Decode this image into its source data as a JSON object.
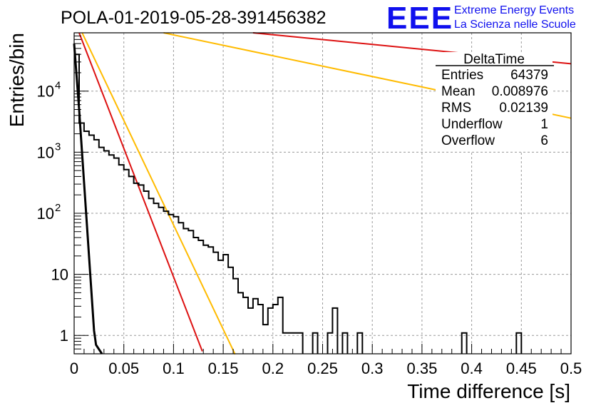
{
  "title": "POLA-01-2019-05-28-391456382",
  "logo": {
    "mark": "EEE",
    "line1": "Extreme Energy Events",
    "line2": "La Scienza nelle Scuole",
    "color": "#1010ee"
  },
  "stats": {
    "name": "DeltaTime",
    "rows": [
      {
        "label": "Entries",
        "value": "64379"
      },
      {
        "label": "Mean",
        "value": "0.008976"
      },
      {
        "label": "RMS",
        "value": "0.02139"
      },
      {
        "label": "Underflow",
        "value": "1"
      },
      {
        "label": "Overflow",
        "value": "6"
      }
    ]
  },
  "chart_data": {
    "type": "histogram",
    "xlabel": "Time difference [s]",
    "ylabel": "Entries/bin",
    "xlim": [
      0,
      0.5
    ],
    "ylim": [
      0.5,
      90000
    ],
    "y_scale": "log",
    "grid": true,
    "x_ticks": [
      {
        "value": 0,
        "label": "0"
      },
      {
        "value": 0.05,
        "label": "0.05"
      },
      {
        "value": 0.1,
        "label": "0.1"
      },
      {
        "value": 0.15,
        "label": "0.15"
      },
      {
        "value": 0.2,
        "label": "0.2"
      },
      {
        "value": 0.25,
        "label": "0.25"
      },
      {
        "value": 0.3,
        "label": "0.3"
      },
      {
        "value": 0.35,
        "label": "0.35"
      },
      {
        "value": 0.4,
        "label": "0.4"
      },
      {
        "value": 0.45,
        "label": "0.45"
      },
      {
        "value": 0.5,
        "label": "0.5"
      }
    ],
    "y_ticks": [
      {
        "value": 1,
        "label": "1"
      },
      {
        "value": 10,
        "label": "10"
      },
      {
        "value": 100,
        "label": "10",
        "exp": "2"
      },
      {
        "value": 1000,
        "label": "10",
        "exp": "3"
      },
      {
        "value": 10000,
        "label": "10",
        "exp": "4"
      }
    ],
    "bin_width": 0.005,
    "histogram": [
      40000,
      3000,
      2200,
      1900,
      1600,
      1200,
      1050,
      900,
      800,
      620,
      520,
      400,
      310,
      290,
      230,
      175,
      145,
      125,
      108,
      95,
      88,
      70,
      56,
      52,
      40,
      36,
      30,
      28,
      23,
      17,
      21,
      13,
      8.5,
      5,
      4.2,
      2.8,
      4,
      3.2,
      1.5,
      2.8,
      3.2,
      4.2,
      1.1,
      1.1,
      1.1,
      1.1,
      0.3,
      0.3,
      1.1,
      0.3,
      0.3,
      1.1,
      2.8,
      0.3,
      1.1,
      0.3,
      0.3,
      1.1,
      0.3,
      0.3,
      0.3,
      0.3,
      0.3,
      0.3,
      0.3,
      0.3,
      0.3,
      0.3,
      0.3,
      0.3,
      0.3,
      0.3,
      0.3,
      0.3,
      0.3,
      0.3,
      0.3,
      0.3,
      1.1,
      0.3,
      0.3,
      0.3,
      0.3,
      0.3,
      0.3,
      0.3,
      0.3,
      0.3,
      0.3,
      1.1,
      0.3,
      0.3,
      0.3,
      0.3,
      0.3,
      0.3,
      0.3,
      0.3,
      0.3,
      0.3
    ],
    "fit_lines": [
      {
        "color": "#000000",
        "points": [
          [
            0.0,
            60000
          ],
          [
            0.005,
            5000
          ],
          [
            0.02,
            1.2
          ],
          [
            0.022,
            0.7
          ],
          [
            0.028,
            0.5
          ]
        ]
      },
      {
        "color": "#dd1111",
        "points": [
          [
            0.005,
            90000
          ],
          [
            0.129,
            0.55
          ]
        ]
      },
      {
        "color": "#ffbb00",
        "points": [
          [
            0.008,
            90000
          ],
          [
            0.162,
            0.48
          ]
        ]
      },
      {
        "color": "#ffbb00",
        "points": [
          [
            0.09,
            90000
          ],
          [
            0.5,
            3600
          ]
        ]
      },
      {
        "color": "#dd1111",
        "points": [
          [
            0.18,
            90000
          ],
          [
            0.5,
            28000
          ]
        ]
      }
    ]
  }
}
